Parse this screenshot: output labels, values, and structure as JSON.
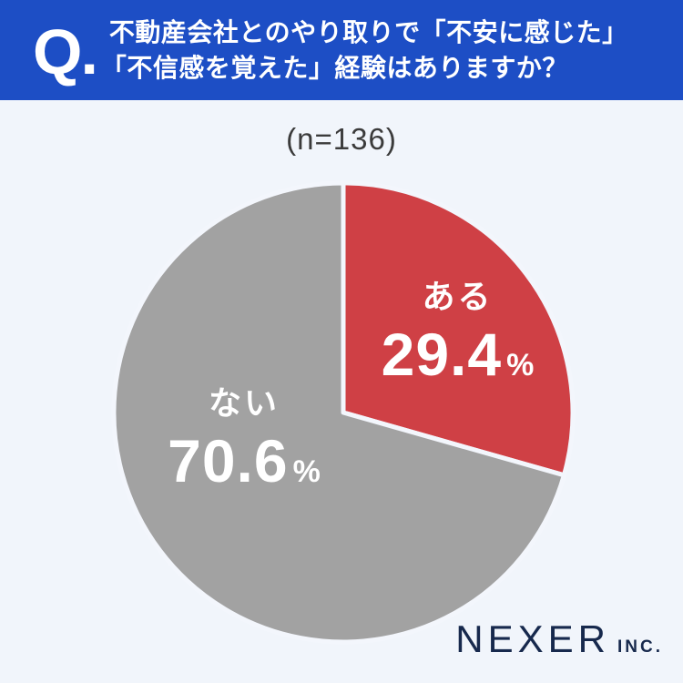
{
  "header": {
    "q_label": "Q.",
    "title_line1": "不動産会社とのやり取りで「不安に感じた」",
    "title_line2": "「不信感を覚えた」経験はありますか？",
    "background_color": "#1d4ec5",
    "text_color": "#ffffff"
  },
  "chart_data": {
    "type": "pie",
    "title": "不動産会社とのやり取りで「不安に感じた」「不信感を覚えた」経験はありますか？",
    "sample_label": "(n=136)",
    "n": 136,
    "start_angle_deg": 0,
    "direction": "clockwise",
    "separator_color": "#f3f6fc",
    "slices": [
      {
        "label": "ある",
        "value": 29.4,
        "unit": "%",
        "color": "#cf4045",
        "text_color": "#ffffff"
      },
      {
        "label": "ない",
        "value": 70.6,
        "unit": "%",
        "color": "#a2a2a2",
        "text_color": "#ffffff"
      }
    ]
  },
  "footer": {
    "brand": "NEXER",
    "brand_suffix": "INC.",
    "brand_color": "#17294d"
  },
  "colors": {
    "page_background": "#f1f5fb"
  }
}
